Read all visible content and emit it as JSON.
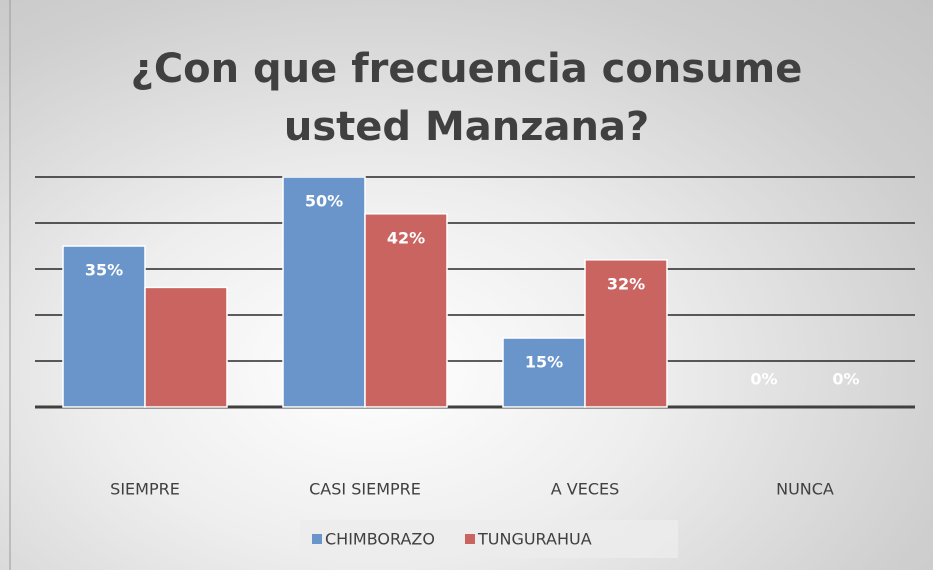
{
  "chart_data": {
    "type": "bar",
    "title": "¿Con que frecuencia consume usted Manzana?",
    "categories": [
      "SIEMPRE",
      "CASI SIEMPRE",
      "A VECES",
      "NUNCA"
    ],
    "series": [
      {
        "name": "CHIMBORAZO",
        "color": "#6a95cb",
        "values": [
          35,
          50,
          15,
          0
        ],
        "value_labels": [
          "35%",
          "50%",
          "15%",
          "0%"
        ]
      },
      {
        "name": "TUNGURAHUA",
        "color": "#c96461",
        "values": [
          26,
          42,
          32,
          0
        ],
        "value_labels": [
          null,
          "42%",
          "32%",
          "0%"
        ]
      }
    ],
    "ylim": [
      0,
      50
    ],
    "yticks": [
      0,
      10,
      20,
      30,
      40,
      50
    ],
    "grid": true,
    "legend": "bottom"
  }
}
